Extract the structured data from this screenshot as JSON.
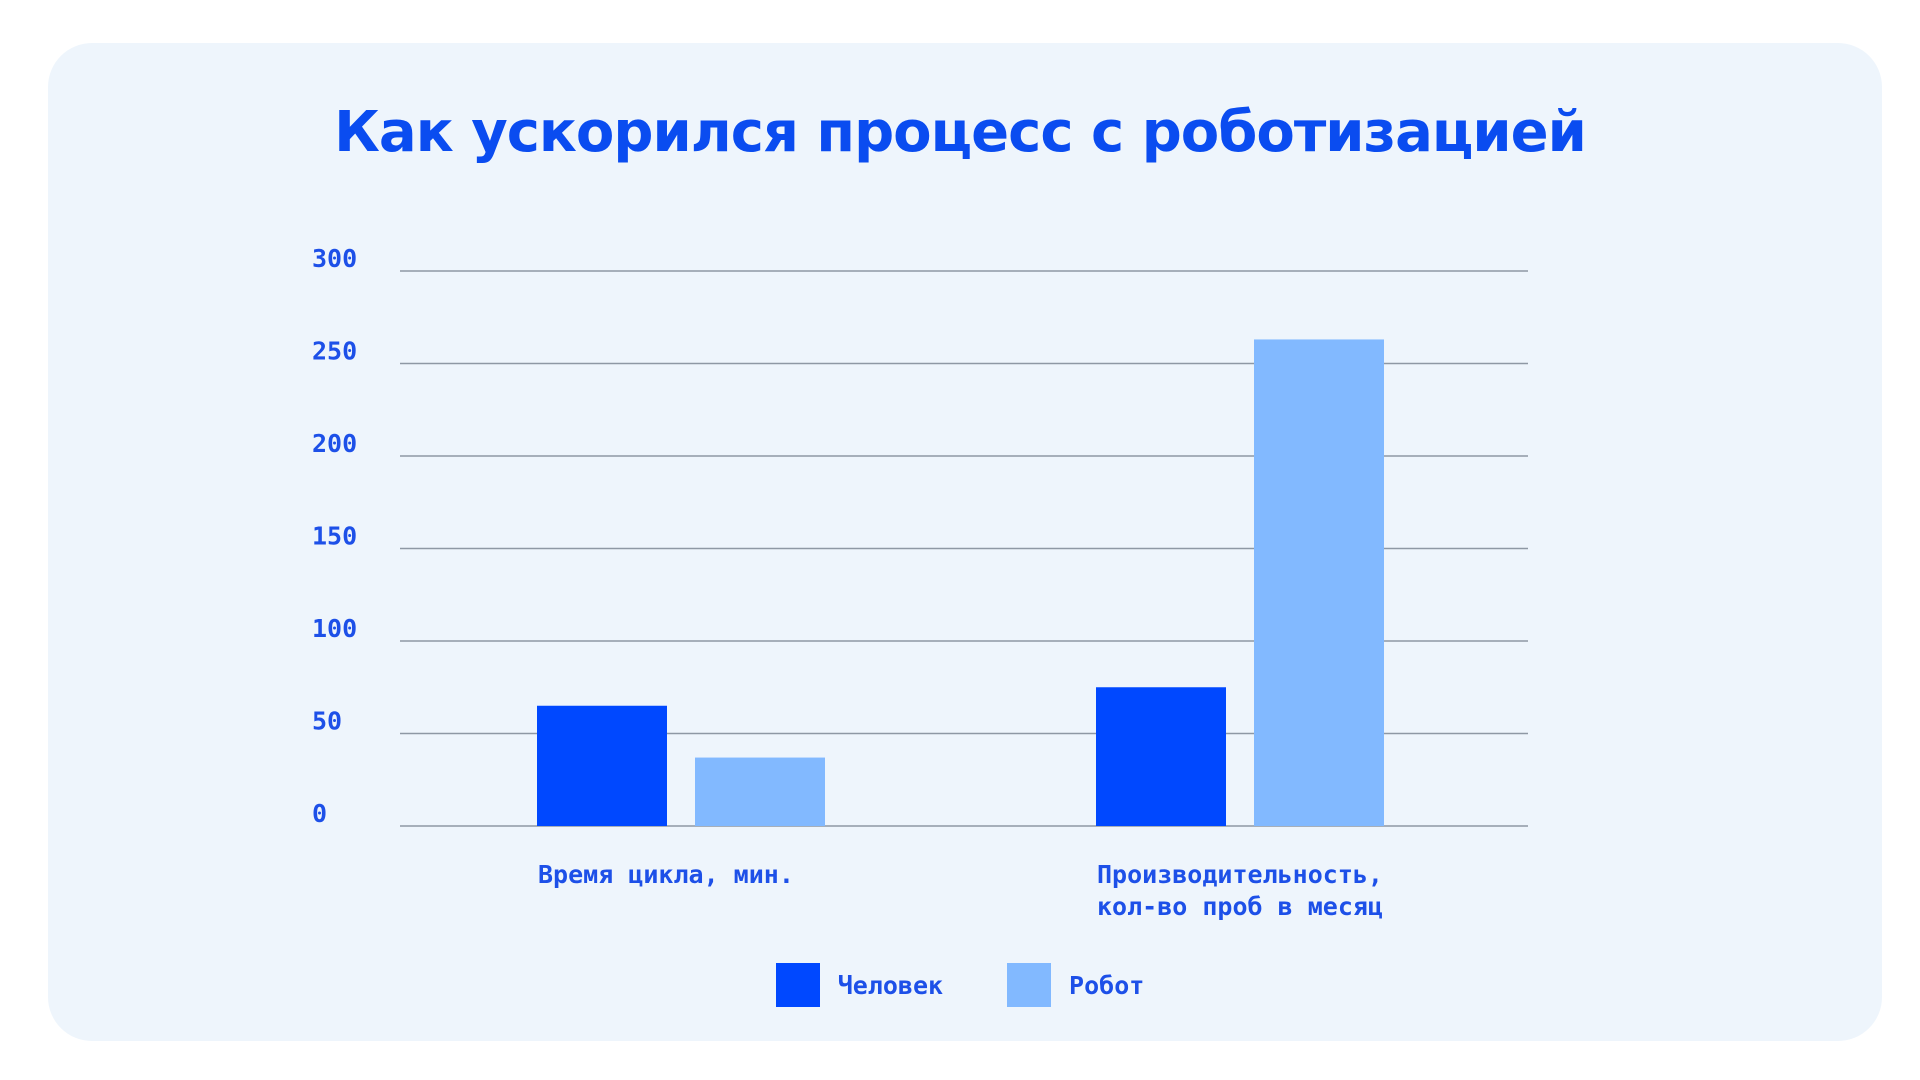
{
  "colors": {
    "background": "#eef5fc",
    "title": "#0a4cf0",
    "text": "#1d50e8",
    "grid": "#8e98a4"
  },
  "chart_data": {
    "type": "bar",
    "title": "Как ускорился процесс с роботизацией",
    "categories": [
      [
        "Время цикла, мин."
      ],
      [
        "Производительность,",
        "кол-во проб в месяц"
      ]
    ],
    "series": [
      {
        "name": "Человек",
        "color": "#0048ff",
        "values": [
          65,
          75
        ]
      },
      {
        "name": "Робот",
        "color": "#82b9ff",
        "values": [
          37,
          263
        ]
      }
    ],
    "ylim": [
      0,
      300
    ],
    "yticks": [
      0,
      50,
      100,
      150,
      200,
      250,
      300
    ],
    "grid": true,
    "legend": "bottom-center",
    "xlabel": "",
    "ylabel": ""
  }
}
